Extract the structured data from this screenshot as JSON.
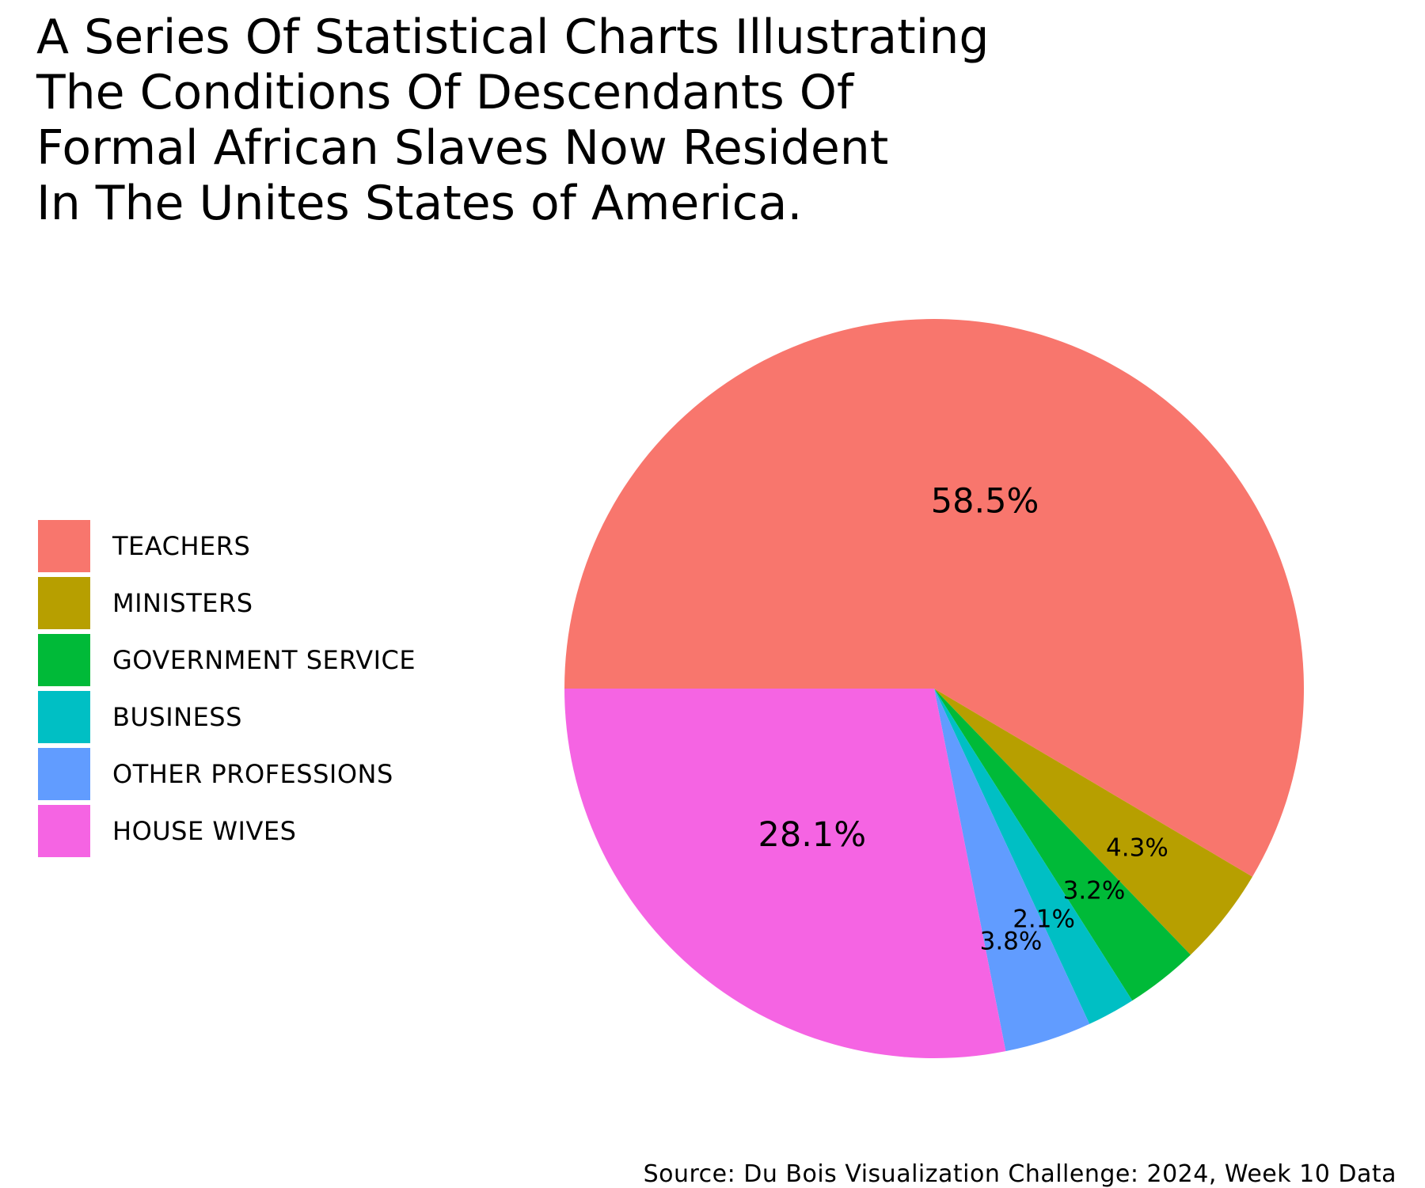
{
  "title_lines": [
    "A Series Of Statistical Charts Illustrating",
    "The Conditions Of Descendants Of",
    "Formal African Slaves Now Resident",
    "In The Unites States of America."
  ],
  "source": "Source: Du Bois Visualization Challenge: 2024, Week 10 Data",
  "chart_data": {
    "type": "pie",
    "title": "A Series Of Statistical Charts Illustrating The Conditions Of Descendants Of Formal African Slaves Now Resident In The Unites States of America.",
    "legend_position": "left",
    "slices": [
      {
        "label": "TEACHERS",
        "value": 58.5,
        "display": "58.5%",
        "color": "#F8766D"
      },
      {
        "label": "MINISTERS",
        "value": 4.3,
        "display": "4.3%",
        "color": "#B79F00"
      },
      {
        "label": "GOVERNMENT SERVICE",
        "value": 3.2,
        "display": "3.2%",
        "color": "#00BA38"
      },
      {
        "label": "BUSINESS",
        "value": 2.1,
        "display": "2.1%",
        "color": "#00BFC4"
      },
      {
        "label": "OTHER PROFESSIONS",
        "value": 3.8,
        "display": "3.8%",
        "color": "#619CFF"
      },
      {
        "label": "HOUSE WIVES",
        "value": 28.1,
        "display": "28.1%",
        "color": "#F564E3"
      }
    ]
  }
}
